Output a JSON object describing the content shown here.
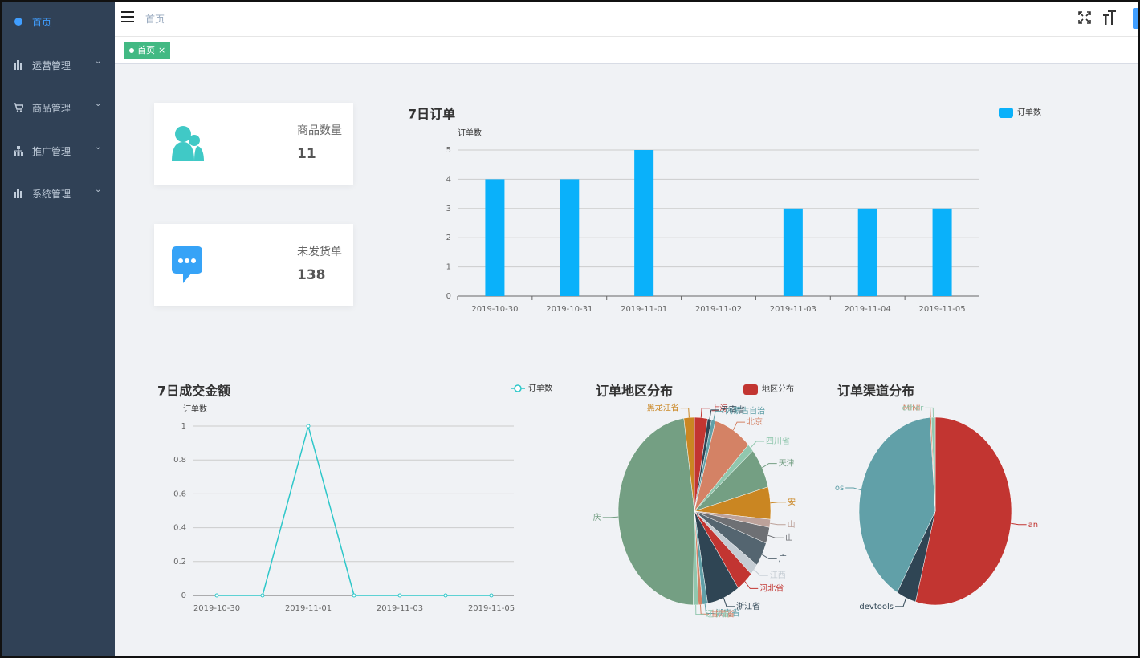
{
  "sidebar": {
    "items": [
      "首页",
      "运营管理",
      "商品管理",
      "推广管理",
      "系统管理"
    ]
  },
  "header": {
    "breadcrumb": "首页"
  },
  "tabs": [
    {
      "label": "首页",
      "close": "×"
    }
  ],
  "cards": [
    {
      "label": "商品数量",
      "value": "11"
    },
    {
      "label": "未发货单",
      "value": "138"
    }
  ],
  "chart_data": [
    {
      "type": "bar",
      "title": "7日订单",
      "y_label": "订单数",
      "categories": [
        "2019-10-30",
        "2019-10-31",
        "2019-11-01",
        "2019-11-02",
        "2019-11-03",
        "2019-11-04",
        "2019-11-05"
      ],
      "series": [
        {
          "name": "订单数",
          "color": "#0ab1fa",
          "values": [
            4,
            4,
            5,
            0,
            3,
            3,
            3
          ]
        }
      ],
      "ylim": [
        0,
        5
      ],
      "yticks": [
        0,
        1,
        2,
        3,
        4,
        5
      ],
      "grid": true
    },
    {
      "type": "line",
      "title": "7日成交金额",
      "y_label": "订单数",
      "categories": [
        "2019-10-30",
        null,
        "2019-11-01",
        null,
        "2019-11-03",
        null,
        "2019-11-05"
      ],
      "series": [
        {
          "name": "订单数",
          "color": "#2ec7c9",
          "values": [
            0,
            0,
            1,
            0,
            0,
            0,
            0
          ]
        }
      ],
      "ylim": [
        0,
        1
      ],
      "yticks": [
        0,
        0.2,
        0.4,
        0.6,
        0.8,
        1
      ],
      "grid": true
    },
    {
      "type": "pie",
      "title": "订单地区分布",
      "series_name": "地区分布",
      "legend_color": "#c23531",
      "categories": [
        "上海",
        "云南省",
        "内蒙古自治",
        "北京",
        "四川省",
        "天津",
        "安",
        "山",
        "山",
        "广",
        "江西",
        "河北省",
        "浙江省",
        "湖南省",
        "甘肃省",
        "辽宁省",
        "庆",
        "黑龙江省"
      ],
      "values": [
        10,
        3,
        3,
        29,
        5,
        25,
        20,
        5,
        10,
        15,
        7,
        13,
        25,
        4,
        3,
        4,
        171,
        8
      ],
      "colors": [
        "#c23531",
        "#2f4554",
        "#61a0a8",
        "#d48265",
        "#91c7ae",
        "#749f83",
        "#ca8622",
        "#bda29a",
        "#6e7074",
        "#546570",
        "#c4ccd3",
        "#c23531",
        "#2f4554",
        "#61a0a8",
        "#d48265",
        "#91c7ae",
        "#749f83",
        "#ca8622"
      ]
    },
    {
      "type": "pie",
      "title": "订单渠道分布",
      "categories": [
        "an",
        "devtools",
        "os",
        "MINI",
        "other"
      ],
      "values": [
        195,
        15,
        146,
        1,
        3
      ],
      "colors": [
        "#c23531",
        "#2f4554",
        "#61a0a8",
        "#d48265",
        "#91c7ae"
      ]
    }
  ]
}
